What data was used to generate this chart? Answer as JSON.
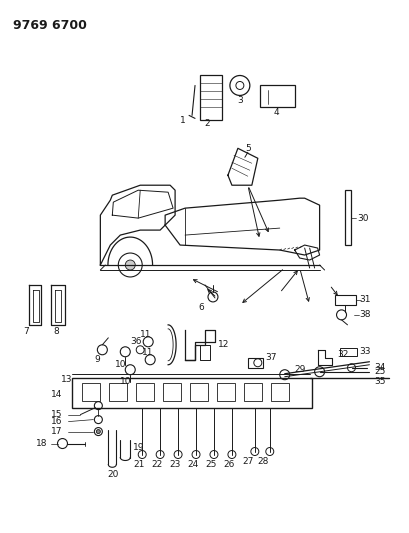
{
  "title": "9769 6700",
  "bg_color": "#ffffff",
  "line_color": "#1a1a1a",
  "title_fontsize": 9,
  "label_fontsize": 6.5,
  "fig_width": 4.1,
  "fig_height": 5.33,
  "dpi": 100
}
